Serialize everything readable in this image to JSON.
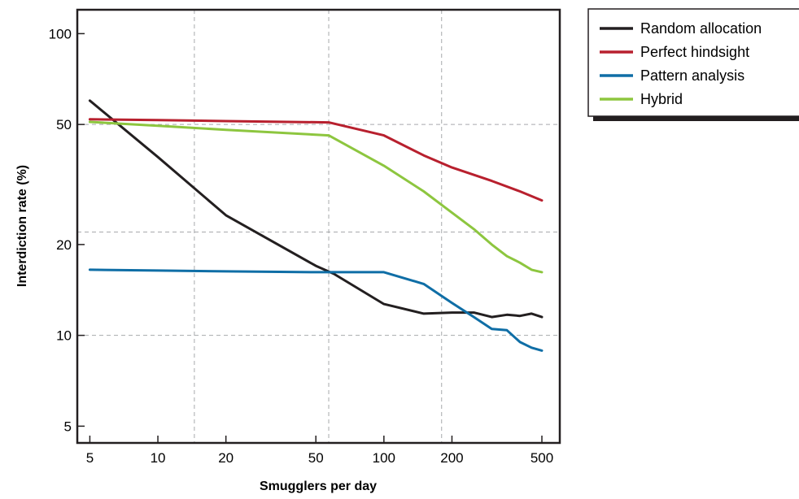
{
  "chart_data": {
    "type": "line",
    "title": "",
    "xlabel": "Smugglers per day",
    "ylabel": "Interdiction rate (%)",
    "x_scale": "log",
    "y_scale": "log",
    "xlim": [
      4.4,
      600
    ],
    "ylim": [
      4.4,
      120
    ],
    "x_ticks": [
      5,
      10,
      20,
      50,
      100,
      200,
      500
    ],
    "y_ticks": [
      5,
      10,
      20,
      50,
      100
    ],
    "x_gridlines": [
      14.5,
      57,
      180
    ],
    "y_gridlines": [
      10,
      22,
      50
    ],
    "grid": true,
    "legend_position": "top-right, outside",
    "series": [
      {
        "name": "Random allocation",
        "color": "#231f20",
        "x": [
          5,
          10,
          20,
          50,
          60,
          100,
          150,
          200,
          250,
          300,
          350,
          400,
          450,
          500
        ],
        "y": [
          60,
          39,
          25,
          17,
          16,
          12.7,
          11.8,
          11.9,
          11.9,
          11.5,
          11.7,
          11.6,
          11.8,
          11.5
        ]
      },
      {
        "name": "Perfect hindsight",
        "color": "#b8202e",
        "x": [
          5,
          10,
          20,
          57,
          100,
          150,
          200,
          300,
          400,
          500
        ],
        "y": [
          52,
          51.7,
          51.3,
          50.8,
          46,
          39.5,
          36,
          32.5,
          30,
          28
        ]
      },
      {
        "name": "Pattern analysis",
        "color": "#0f6ea6",
        "x": [
          5,
          10,
          20,
          50,
          100,
          150,
          200,
          250,
          300,
          350,
          400,
          450,
          500
        ],
        "y": [
          16.5,
          16.4,
          16.3,
          16.2,
          16.2,
          14.8,
          12.8,
          11.5,
          10.5,
          10.4,
          9.5,
          9.1,
          8.9
        ]
      },
      {
        "name": "Hybrid",
        "color": "#8dc63f",
        "x": [
          5,
          10,
          20,
          57,
          100,
          150,
          200,
          250,
          300,
          350,
          400,
          450,
          500
        ],
        "y": [
          51,
          49.5,
          48,
          46,
          36.5,
          30,
          25.5,
          22.5,
          20,
          18.3,
          17.4,
          16.5,
          16.2
        ]
      }
    ]
  }
}
